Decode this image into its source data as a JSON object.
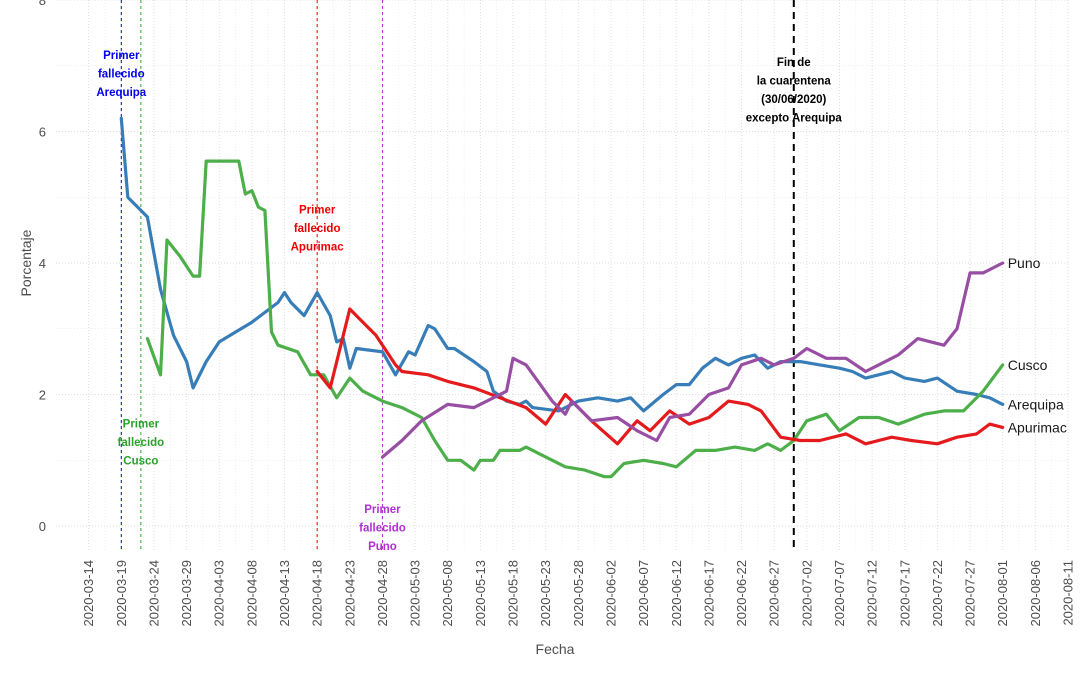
{
  "chart_data": {
    "type": "line",
    "xlabel": "Fecha",
    "ylabel": "Porcentaje",
    "ylim": [
      0,
      8
    ],
    "y_ticks": [
      "0",
      "2",
      "4",
      "6",
      "8"
    ],
    "xlim": [
      "2020-03-09",
      "2020-08-11"
    ],
    "x_ticks": [
      "2020-03-14",
      "2020-03-19",
      "2020-03-24",
      "2020-03-29",
      "2020-04-03",
      "2020-04-08",
      "2020-04-13",
      "2020-04-18",
      "2020-04-23",
      "2020-04-28",
      "2020-05-03",
      "2020-05-08",
      "2020-05-13",
      "2020-05-18",
      "2020-05-23",
      "2020-05-28",
      "2020-06-02",
      "2020-06-07",
      "2020-06-12",
      "2020-06-17",
      "2020-06-22",
      "2020-06-27",
      "2020-07-02",
      "2020-07-07",
      "2020-07-12",
      "2020-07-17",
      "2020-07-22",
      "2020-07-27",
      "2020-08-01",
      "2020-08-06",
      "2020-08-11"
    ],
    "grid": true,
    "series": [
      {
        "name": "Arequipa",
        "color": "#377eb8",
        "points": [
          [
            "2020-03-19",
            6.2
          ],
          [
            "2020-03-20",
            5.0
          ],
          [
            "2020-03-22",
            4.8
          ],
          [
            "2020-03-23",
            4.7
          ],
          [
            "2020-03-25",
            3.6
          ],
          [
            "2020-03-27",
            2.9
          ],
          [
            "2020-03-29",
            2.5
          ],
          [
            "2020-03-30",
            2.1
          ],
          [
            "2020-04-01",
            2.5
          ],
          [
            "2020-04-03",
            2.8
          ],
          [
            "2020-04-08",
            3.1
          ],
          [
            "2020-04-12",
            3.4
          ],
          [
            "2020-04-13",
            3.55
          ],
          [
            "2020-04-14",
            3.4
          ],
          [
            "2020-04-16",
            3.2
          ],
          [
            "2020-04-18",
            3.55
          ],
          [
            "2020-04-20",
            3.2
          ],
          [
            "2020-04-21",
            2.8
          ],
          [
            "2020-04-22",
            2.85
          ],
          [
            "2020-04-23",
            2.4
          ],
          [
            "2020-04-24",
            2.7
          ],
          [
            "2020-04-28",
            2.65
          ],
          [
            "2020-04-30",
            2.3
          ],
          [
            "2020-05-02",
            2.65
          ],
          [
            "2020-05-03",
            2.6
          ],
          [
            "2020-05-05",
            3.05
          ],
          [
            "2020-05-06",
            3.0
          ],
          [
            "2020-05-08",
            2.7
          ],
          [
            "2020-05-09",
            2.7
          ],
          [
            "2020-05-12",
            2.5
          ],
          [
            "2020-05-14",
            2.35
          ],
          [
            "2020-05-15",
            2.05
          ],
          [
            "2020-05-17",
            1.9
          ],
          [
            "2020-05-19",
            1.85
          ],
          [
            "2020-05-20",
            1.9
          ],
          [
            "2020-05-21",
            1.8
          ],
          [
            "2020-05-25",
            1.75
          ],
          [
            "2020-05-28",
            1.9
          ],
          [
            "2020-05-31",
            1.95
          ],
          [
            "2020-06-03",
            1.9
          ],
          [
            "2020-06-05",
            1.95
          ],
          [
            "2020-06-07",
            1.75
          ],
          [
            "2020-06-10",
            2.0
          ],
          [
            "2020-06-12",
            2.15
          ],
          [
            "2020-06-14",
            2.15
          ],
          [
            "2020-06-16",
            2.4
          ],
          [
            "2020-06-18",
            2.55
          ],
          [
            "2020-06-20",
            2.45
          ],
          [
            "2020-06-22",
            2.55
          ],
          [
            "2020-06-24",
            2.6
          ],
          [
            "2020-06-26",
            2.4
          ],
          [
            "2020-06-28",
            2.5
          ],
          [
            "2020-07-01",
            2.5
          ],
          [
            "2020-07-04",
            2.45
          ],
          [
            "2020-07-07",
            2.4
          ],
          [
            "2020-07-09",
            2.35
          ],
          [
            "2020-07-11",
            2.25
          ],
          [
            "2020-07-13",
            2.3
          ],
          [
            "2020-07-15",
            2.35
          ],
          [
            "2020-07-17",
            2.25
          ],
          [
            "2020-07-20",
            2.2
          ],
          [
            "2020-07-22",
            2.25
          ],
          [
            "2020-07-25",
            2.05
          ],
          [
            "2020-07-28",
            2.0
          ],
          [
            "2020-07-30",
            1.95
          ],
          [
            "2020-08-01",
            1.85
          ]
        ]
      },
      {
        "name": "Cusco",
        "color": "#4daf4a",
        "points": [
          [
            "2020-03-23",
            2.85
          ],
          [
            "2020-03-25",
            2.3
          ],
          [
            "2020-03-26",
            4.35
          ],
          [
            "2020-03-28",
            4.1
          ],
          [
            "2020-03-30",
            3.8
          ],
          [
            "2020-03-31",
            3.8
          ],
          [
            "2020-04-01",
            5.55
          ],
          [
            "2020-04-06",
            5.55
          ],
          [
            "2020-04-07",
            5.05
          ],
          [
            "2020-04-08",
            5.1
          ],
          [
            "2020-04-09",
            4.85
          ],
          [
            "2020-04-10",
            4.8
          ],
          [
            "2020-04-11",
            2.95
          ],
          [
            "2020-04-12",
            2.75
          ],
          [
            "2020-04-15",
            2.65
          ],
          [
            "2020-04-17",
            2.3
          ],
          [
            "2020-04-19",
            2.3
          ],
          [
            "2020-04-21",
            1.95
          ],
          [
            "2020-04-23",
            2.25
          ],
          [
            "2020-04-25",
            2.05
          ],
          [
            "2020-04-28",
            1.9
          ],
          [
            "2020-05-01",
            1.8
          ],
          [
            "2020-05-04",
            1.65
          ],
          [
            "2020-05-06",
            1.3
          ],
          [
            "2020-05-08",
            1.0
          ],
          [
            "2020-05-10",
            1.0
          ],
          [
            "2020-05-12",
            0.85
          ],
          [
            "2020-05-13",
            1.0
          ],
          [
            "2020-05-15",
            1.0
          ],
          [
            "2020-05-16",
            1.15
          ],
          [
            "2020-05-19",
            1.15
          ],
          [
            "2020-05-20",
            1.2
          ],
          [
            "2020-05-22",
            1.1
          ],
          [
            "2020-05-26",
            0.9
          ],
          [
            "2020-05-29",
            0.85
          ],
          [
            "2020-06-01",
            0.75
          ],
          [
            "2020-06-02",
            0.75
          ],
          [
            "2020-06-04",
            0.95
          ],
          [
            "2020-06-07",
            1.0
          ],
          [
            "2020-06-10",
            0.95
          ],
          [
            "2020-06-12",
            0.9
          ],
          [
            "2020-06-15",
            1.15
          ],
          [
            "2020-06-18",
            1.15
          ],
          [
            "2020-06-21",
            1.2
          ],
          [
            "2020-06-24",
            1.15
          ],
          [
            "2020-06-26",
            1.25
          ],
          [
            "2020-06-28",
            1.15
          ],
          [
            "2020-06-30",
            1.3
          ],
          [
            "2020-07-02",
            1.6
          ],
          [
            "2020-07-05",
            1.7
          ],
          [
            "2020-07-07",
            1.45
          ],
          [
            "2020-07-10",
            1.65
          ],
          [
            "2020-07-13",
            1.65
          ],
          [
            "2020-07-16",
            1.55
          ],
          [
            "2020-07-20",
            1.7
          ],
          [
            "2020-07-23",
            1.75
          ],
          [
            "2020-07-26",
            1.75
          ],
          [
            "2020-07-29",
            2.05
          ],
          [
            "2020-08-01",
            2.45
          ]
        ]
      },
      {
        "name": "Apurimac",
        "color": "#e41a1c",
        "points": [
          [
            "2020-04-18",
            2.35
          ],
          [
            "2020-04-20",
            2.1
          ],
          [
            "2020-04-23",
            3.3
          ],
          [
            "2020-04-25",
            3.1
          ],
          [
            "2020-04-27",
            2.9
          ],
          [
            "2020-04-30",
            2.45
          ],
          [
            "2020-05-01",
            2.35
          ],
          [
            "2020-05-05",
            2.3
          ],
          [
            "2020-05-08",
            2.2
          ],
          [
            "2020-05-12",
            2.1
          ],
          [
            "2020-05-16",
            1.95
          ],
          [
            "2020-05-20",
            1.8
          ],
          [
            "2020-05-23",
            1.55
          ],
          [
            "2020-05-26",
            2.0
          ],
          [
            "2020-05-30",
            1.6
          ],
          [
            "2020-06-03",
            1.25
          ],
          [
            "2020-06-06",
            1.6
          ],
          [
            "2020-06-08",
            1.45
          ],
          [
            "2020-06-11",
            1.75
          ],
          [
            "2020-06-14",
            1.55
          ],
          [
            "2020-06-17",
            1.65
          ],
          [
            "2020-06-20",
            1.9
          ],
          [
            "2020-06-23",
            1.85
          ],
          [
            "2020-06-25",
            1.75
          ],
          [
            "2020-06-28",
            1.35
          ],
          [
            "2020-07-01",
            1.3
          ],
          [
            "2020-07-04",
            1.3
          ],
          [
            "2020-07-08",
            1.4
          ],
          [
            "2020-07-11",
            1.25
          ],
          [
            "2020-07-15",
            1.35
          ],
          [
            "2020-07-18",
            1.3
          ],
          [
            "2020-07-22",
            1.25
          ],
          [
            "2020-07-25",
            1.35
          ],
          [
            "2020-07-28",
            1.4
          ],
          [
            "2020-07-30",
            1.55
          ],
          [
            "2020-08-01",
            1.5
          ]
        ]
      },
      {
        "name": "Puno",
        "color": "#984ea3",
        "points": [
          [
            "2020-04-28",
            1.05
          ],
          [
            "2020-05-01",
            1.3
          ],
          [
            "2020-05-04",
            1.6
          ],
          [
            "2020-05-08",
            1.85
          ],
          [
            "2020-05-12",
            1.8
          ],
          [
            "2020-05-15",
            1.95
          ],
          [
            "2020-05-17",
            2.05
          ],
          [
            "2020-05-18",
            2.55
          ],
          [
            "2020-05-20",
            2.45
          ],
          [
            "2020-05-24",
            1.9
          ],
          [
            "2020-05-26",
            1.7
          ],
          [
            "2020-05-27",
            1.9
          ],
          [
            "2020-05-30",
            1.6
          ],
          [
            "2020-06-03",
            1.65
          ],
          [
            "2020-06-06",
            1.45
          ],
          [
            "2020-06-09",
            1.3
          ],
          [
            "2020-06-11",
            1.65
          ],
          [
            "2020-06-14",
            1.7
          ],
          [
            "2020-06-17",
            2.0
          ],
          [
            "2020-06-20",
            2.1
          ],
          [
            "2020-06-22",
            2.45
          ],
          [
            "2020-06-25",
            2.55
          ],
          [
            "2020-06-27",
            2.45
          ],
          [
            "2020-06-30",
            2.55
          ],
          [
            "2020-07-02",
            2.7
          ],
          [
            "2020-07-05",
            2.55
          ],
          [
            "2020-07-08",
            2.55
          ],
          [
            "2020-07-11",
            2.35
          ],
          [
            "2020-07-13",
            2.45
          ],
          [
            "2020-07-16",
            2.6
          ],
          [
            "2020-07-19",
            2.85
          ],
          [
            "2020-07-21",
            2.8
          ],
          [
            "2020-07-23",
            2.75
          ],
          [
            "2020-07-25",
            3.0
          ],
          [
            "2020-07-27",
            3.85
          ],
          [
            "2020-07-29",
            3.85
          ],
          [
            "2020-08-01",
            4.0
          ]
        ]
      }
    ],
    "vlines": [
      {
        "date": "2020-03-19",
        "color": "#0000ee",
        "style": "dotted"
      },
      {
        "date": "2020-03-22",
        "color": "#2ca02c",
        "style": "dotted"
      },
      {
        "date": "2020-04-18",
        "color": "#ee0000",
        "style": "dotted"
      },
      {
        "date": "2020-04-28",
        "color": "#b030d0",
        "style": "dotted"
      },
      {
        "date": "2020-06-30",
        "color": "#000000",
        "style": "dashed"
      }
    ],
    "annotations": [
      {
        "lines": [
          "Primer",
          "fallecido",
          "Arequipa"
        ],
        "color": "#0000ee",
        "date": "2020-03-19",
        "y": 7.1
      },
      {
        "lines": [
          "Primer",
          "fallecido",
          "Cusco"
        ],
        "color": "#2ca02c",
        "date": "2020-03-22",
        "y": 1.5
      },
      {
        "lines": [
          "Primer",
          "fallecido",
          "Apurimac"
        ],
        "color": "#ee0000",
        "date": "2020-04-18",
        "y": 4.75
      },
      {
        "lines": [
          "Primer",
          "fallecido",
          "Puno"
        ],
        "color": "#b030d0",
        "date": "2020-04-28",
        "y": 0.2
      },
      {
        "lines": [
          "Fin de",
          "la cuarentena",
          "(30/06/2020)",
          "excepto Arequipa"
        ],
        "color": "#000000",
        "date": "2020-06-30",
        "y": 7.0
      }
    ]
  }
}
